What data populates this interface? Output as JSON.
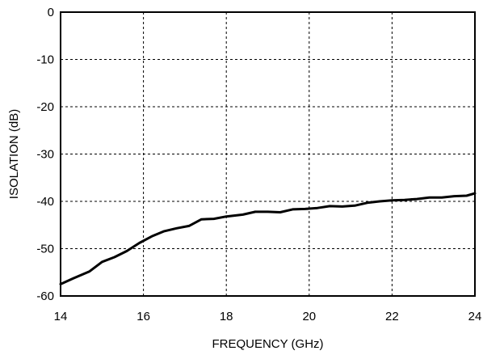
{
  "chart_data": {
    "type": "line",
    "title": "",
    "xlabel": "FREQUENCY (GHz)",
    "ylabel": "ISOLATION (dB)",
    "xlim": [
      14,
      24
    ],
    "ylim": [
      -60,
      0
    ],
    "xticks": [
      14,
      16,
      18,
      20,
      22,
      24
    ],
    "yticks": [
      0,
      -10,
      -20,
      -30,
      -40,
      -50,
      -60
    ],
    "grid": true,
    "legend": "none",
    "series": [
      {
        "color": "#000000",
        "x": [
          14.0,
          14.3,
          14.7,
          15.0,
          15.3,
          15.6,
          15.9,
          16.2,
          16.5,
          16.8,
          17.1,
          17.4,
          17.7,
          18.0,
          18.4,
          18.7,
          19.0,
          19.3,
          19.6,
          19.9,
          20.2,
          20.5,
          20.8,
          21.1,
          21.4,
          21.7,
          22.0,
          22.3,
          22.6,
          22.9,
          23.2,
          23.5,
          23.8,
          24.0
        ],
        "y": [
          -57.5,
          -56.3,
          -54.8,
          -52.8,
          -51.8,
          -50.5,
          -48.8,
          -47.4,
          -46.3,
          -45.7,
          -45.2,
          -43.8,
          -43.7,
          -43.2,
          -42.8,
          -42.2,
          -42.2,
          -42.3,
          -41.7,
          -41.6,
          -41.4,
          -41.0,
          -41.1,
          -40.9,
          -40.3,
          -40.0,
          -39.8,
          -39.7,
          -39.5,
          -39.2,
          -39.2,
          -38.9,
          -38.8,
          -38.3
        ]
      }
    ]
  }
}
